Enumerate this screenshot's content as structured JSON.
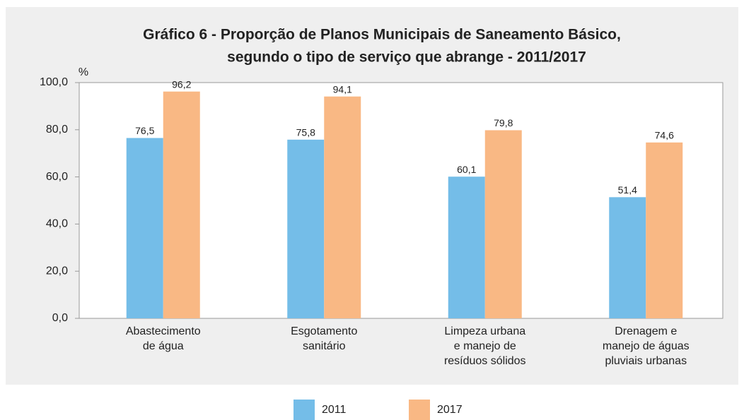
{
  "chart_data": {
    "type": "bar",
    "title": [
      "Gráfico 6 - Proporção de Planos Municipais de Saneamento Básico,",
      "segundo o tipo de serviço que abrange - 2011/2017"
    ],
    "y_label": "%",
    "categories": [
      [
        "Abastecimento",
        "de água"
      ],
      [
        "Esgotamento",
        "sanitário"
      ],
      [
        "Limpeza urbana",
        "e manejo de",
        "resíduos sólidos"
      ],
      [
        "Drenagem e",
        "manejo de águas",
        "pluviais urbanas"
      ]
    ],
    "series": [
      {
        "name": "2011",
        "color": "#74bde8",
        "values": [
          76.5,
          75.8,
          60.1,
          51.4
        ],
        "value_labels": [
          "76,5",
          "75,8",
          "60,1",
          "51,4"
        ]
      },
      {
        "name": "2017",
        "color": "#f9b884",
        "values": [
          96.2,
          94.1,
          79.8,
          74.6
        ],
        "value_labels": [
          "96,2",
          "94,1",
          "79,8",
          "74,6"
        ]
      }
    ],
    "ylim": [
      0,
      100
    ],
    "yticks": [
      {
        "value": 0,
        "label": "0,0"
      },
      {
        "value": 20,
        "label": "20,0"
      },
      {
        "value": 40,
        "label": "40,0"
      },
      {
        "value": 60,
        "label": "60,0"
      },
      {
        "value": 80,
        "label": "80,0"
      },
      {
        "value": 100,
        "label": "100,0"
      }
    ],
    "grid": false
  }
}
